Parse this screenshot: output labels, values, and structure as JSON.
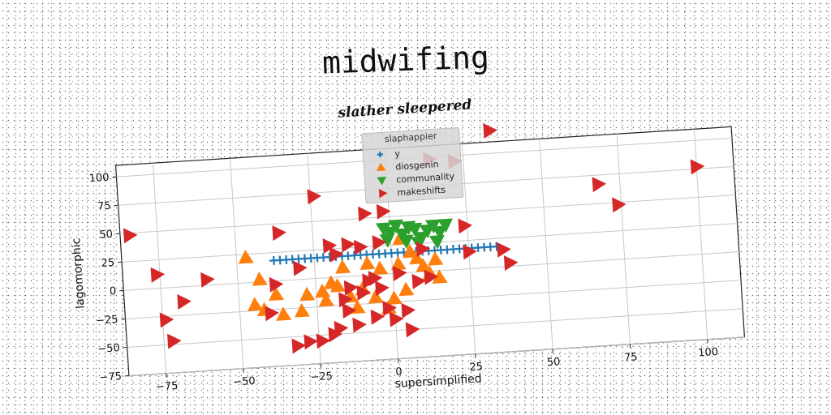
{
  "page_title": "midwifing",
  "chart_data": {
    "type": "scatter",
    "title": "slather sleepered",
    "xlabel": "supersimplified",
    "ylabel": "lagomorphic",
    "xlim": [
      -87,
      112
    ],
    "ylim": [
      -75,
      110
    ],
    "xticks": [
      -75,
      -50,
      -25,
      0,
      25,
      50,
      75,
      100
    ],
    "yticks": [
      -75,
      -50,
      -25,
      0,
      25,
      50,
      75,
      100
    ],
    "grid": true,
    "legend": {
      "title": "slaphappier",
      "placement": "top-center"
    },
    "series": [
      {
        "name": "y",
        "marker": "plus",
        "color": "#1f77b4",
        "points": [
          [
            -38,
            18
          ],
          [
            -36,
            18
          ],
          [
            -34,
            18
          ],
          [
            -32,
            18
          ],
          [
            -30,
            18
          ],
          [
            -28,
            18
          ],
          [
            -26,
            18
          ],
          [
            -24,
            18
          ],
          [
            -22,
            18
          ],
          [
            -20,
            18
          ],
          [
            -18,
            18
          ],
          [
            -16,
            18
          ],
          [
            -14,
            18
          ],
          [
            -12,
            18
          ],
          [
            -10,
            18
          ],
          [
            -8,
            18
          ],
          [
            -6,
            18
          ],
          [
            -4,
            18
          ],
          [
            -2,
            18
          ],
          [
            0,
            18
          ],
          [
            2,
            18
          ],
          [
            4,
            18
          ],
          [
            6,
            18
          ],
          [
            8,
            18
          ],
          [
            10,
            18
          ],
          [
            12,
            18
          ],
          [
            14,
            18
          ],
          [
            16,
            18
          ],
          [
            18,
            18
          ],
          [
            20,
            18
          ],
          [
            22,
            18
          ],
          [
            24,
            18
          ],
          [
            26,
            18
          ],
          [
            28,
            18
          ],
          [
            30,
            18
          ],
          [
            32,
            18
          ],
          [
            34,
            18
          ]
        ]
      },
      {
        "name": "diosgenin",
        "marker": "triangle-up",
        "color": "#ff7f0e",
        "points": [
          [
            -47,
            22
          ],
          [
            -43,
            2
          ],
          [
            -45,
            -20
          ],
          [
            -42,
            -25
          ],
          [
            -38,
            -12
          ],
          [
            -36,
            -30
          ],
          [
            -30,
            -28
          ],
          [
            -28,
            -14
          ],
          [
            -23,
            -12
          ],
          [
            -22,
            -20
          ],
          [
            -20,
            -5
          ],
          [
            -18,
            -8
          ],
          [
            -16,
            8
          ],
          [
            -14,
            -18
          ],
          [
            -12,
            -28
          ],
          [
            -10,
            -12
          ],
          [
            -8,
            10
          ],
          [
            -6,
            -20
          ],
          [
            -4,
            5
          ],
          [
            -2,
            -30
          ],
          [
            0,
            -22
          ],
          [
            2,
            8
          ],
          [
            4,
            -15
          ],
          [
            6,
            18
          ],
          [
            8,
            12
          ],
          [
            10,
            5
          ],
          [
            12,
            -2
          ],
          [
            14,
            10
          ],
          [
            15,
            -6
          ],
          [
            3,
            30
          ]
        ]
      },
      {
        "name": "communality",
        "marker": "triangle-down",
        "color": "#2ca02c",
        "points": [
          [
            -2,
            40
          ],
          [
            0,
            36
          ],
          [
            2,
            42
          ],
          [
            4,
            34
          ],
          [
            6,
            40
          ],
          [
            8,
            38
          ],
          [
            10,
            30
          ],
          [
            12,
            36
          ],
          [
            14,
            40
          ],
          [
            16,
            34
          ],
          [
            18,
            40
          ],
          [
            5,
            28
          ],
          [
            9,
            26
          ],
          [
            -1,
            30
          ],
          [
            15,
            26
          ]
        ]
      },
      {
        "name": "makeshifts",
        "marker": "triangle-right",
        "color": "#d62728",
        "points": [
          [
            -84,
            48
          ],
          [
            -76,
            12
          ],
          [
            -74,
            -28
          ],
          [
            -72,
            -47
          ],
          [
            -68,
            -13
          ],
          [
            -60,
            5
          ],
          [
            -40,
            -28
          ],
          [
            -38,
            -3
          ],
          [
            -36,
            42
          ],
          [
            -30,
            10
          ],
          [
            -32,
            -58
          ],
          [
            -28,
            -55
          ],
          [
            -24,
            -55
          ],
          [
            -20,
            -50
          ],
          [
            -18,
            -45
          ],
          [
            -16,
            -20
          ],
          [
            -15,
            -30
          ],
          [
            -14,
            -10
          ],
          [
            -12,
            -43
          ],
          [
            -10,
            -15
          ],
          [
            -8,
            -5
          ],
          [
            -6,
            -37
          ],
          [
            -4,
            -12
          ],
          [
            -2,
            -30
          ],
          [
            0,
            -40
          ],
          [
            -24,
            72
          ],
          [
            -20,
            28
          ],
          [
            -18,
            20
          ],
          [
            -14,
            28
          ],
          [
            -10,
            25
          ],
          [
            -8,
            54
          ],
          [
            -6,
            -3
          ],
          [
            -4,
            28
          ],
          [
            -2,
            55
          ],
          [
            2,
            0
          ],
          [
            4,
            -33
          ],
          [
            5,
            -50
          ],
          [
            8,
            -8
          ],
          [
            10,
            20
          ],
          [
            12,
            -5
          ],
          [
            14,
            98
          ],
          [
            22,
            95
          ],
          [
            24,
            38
          ],
          [
            25,
            15
          ],
          [
            34,
            120
          ],
          [
            36,
            15
          ],
          [
            38,
            3
          ],
          [
            68,
            67
          ],
          [
            74,
            48
          ],
          [
            100,
            77
          ]
        ]
      }
    ]
  }
}
